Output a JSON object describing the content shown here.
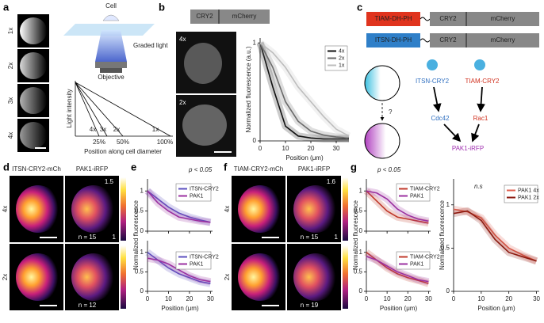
{
  "a": {
    "label": "a",
    "rows": [
      "1x",
      "2x",
      "3x",
      "4x"
    ],
    "cell": "Cell",
    "light": "Graded light",
    "objective": "Objective",
    "ylabel": "Light intensity",
    "xlabel": "Position along cell diameter",
    "line_labels": [
      "4x",
      "3x",
      "2x",
      "1x"
    ],
    "end_labels": [
      "25%",
      "50%",
      "100%"
    ]
  },
  "b": {
    "label": "b",
    "construct": [
      "CRY2",
      "mCherry"
    ],
    "rows": [
      "4x",
      "2x"
    ],
    "plot": {
      "ylabel": "Normalized fluorescence (a.u.)",
      "xlabel": "Position (μm)",
      "xlim": [
        0,
        35
      ],
      "xticks": [
        0,
        10,
        20,
        30
      ],
      "ylim": [
        0,
        1.05
      ],
      "x": [
        0,
        5,
        10,
        15,
        20,
        25,
        30,
        35
      ],
      "plots": [
        {
          "yticks": [
            0,
            1
          ],
          "series": [
            {
              "name": "4x",
              "color": "#111111",
              "values": [
                1,
                0.55,
                0.15,
                0.05,
                0.03,
                0.02,
                0.02,
                0.02
              ]
            },
            {
              "name": "2x",
              "color": "#6a6a6a",
              "values": [
                1,
                0.75,
                0.4,
                0.2,
                0.1,
                0.06,
                0.04,
                0.03
              ]
            },
            {
              "name": "1x",
              "color": "#bdbdbd",
              "values": [
                1,
                0.9,
                0.75,
                0.55,
                0.4,
                0.25,
                0.12,
                0.05
              ]
            }
          ]
        }
      ]
    }
  },
  "c": {
    "label": "c",
    "constructs": [
      {
        "name": "TIAM-DH-PH",
        "parts": [
          "CRY2",
          "mCherry"
        ]
      },
      {
        "name": "ITSN-DH-PH",
        "parts": [
          "CRY2",
          "mCherry"
        ]
      }
    ],
    "question": "?",
    "nodes": [
      "ITSN-CRY2",
      "TIAM-CRY2",
      "Cdc42",
      "Rac1",
      "PAK1-iRFP"
    ]
  },
  "d": {
    "label": "d",
    "columns": [
      "ITSN-CRY2-mCh",
      "PAK1-iRFP"
    ],
    "rows": [
      "4x",
      "2x"
    ],
    "n": [
      "n = 15",
      "n = 12"
    ],
    "colorbar": [
      "1.5",
      "1"
    ]
  },
  "e": {
    "label": "e",
    "annotation": "p < 0.05",
    "ylabel": "Normalized fluorescence",
    "xlabel": "Position (μm)",
    "xlim": [
      0,
      31
    ],
    "xticks": [
      0,
      10,
      20,
      30
    ],
    "ylim": [
      0,
      1.3
    ],
    "x": [
      0,
      5,
      10,
      15,
      20,
      25,
      30
    ],
    "plots": [
      {
        "yticks": [
          0,
          0.5,
          1
        ],
        "series": [
          {
            "name": "ITSN-CRY2",
            "color": "#5b4fbf",
            "values": [
              1,
              0.8,
              0.6,
              0.45,
              0.35,
              0.28,
              0.22
            ]
          },
          {
            "name": "PAK1",
            "color": "#9b30a0",
            "values": [
              1,
              0.7,
              0.5,
              0.35,
              0.3,
              0.25,
              0.22
            ]
          }
        ]
      },
      {
        "yticks": [
          0,
          0.5,
          1
        ],
        "series": [
          {
            "name": "ITSN-CRY2",
            "color": "#5b4fbf",
            "values": [
              1,
              0.8,
              0.6,
              0.45,
              0.35,
              0.25,
              0.2
            ]
          },
          {
            "name": "PAK1",
            "color": "#9b30a0",
            "values": [
              0.85,
              0.8,
              0.7,
              0.55,
              0.4,
              0.3,
              0.25
            ]
          }
        ]
      }
    ]
  },
  "f": {
    "label": "f",
    "columns": [
      "TIAM-CRY2-mCh",
      "PAK1-iRFP"
    ],
    "rows": [
      "4x",
      "2x"
    ],
    "n": [
      "n = 15",
      "n = 19"
    ],
    "colorbar": [
      "1.6",
      "1"
    ]
  },
  "g": {
    "label": "g",
    "left": {
      "annotation": "p < 0.05",
      "ylabel": "Normalized fluorescence",
      "xlabel": "Position (μm)",
      "xlim": [
        0,
        31
      ],
      "xticks": [
        0,
        10,
        20,
        30
      ],
      "ylim": [
        0,
        1.3
      ],
      "x": [
        0,
        5,
        10,
        15,
        20,
        25,
        30
      ],
      "plots": [
        {
          "yticks": [
            0,
            0.5,
            1
          ],
          "series": [
            {
              "name": "TIAM-CRY2",
              "color": "#c0392b",
              "values": [
                1,
                0.75,
                0.5,
                0.35,
                0.3,
                0.25,
                0.2
              ]
            },
            {
              "name": "PAK1",
              "color": "#9b30a0",
              "values": [
                1,
                0.95,
                0.8,
                0.55,
                0.4,
                0.3,
                0.25
              ]
            }
          ]
        },
        {
          "yticks": [
            0,
            0.5,
            1
          ],
          "series": [
            {
              "name": "TIAM-CRY2",
              "color": "#c0392b",
              "values": [
                1,
                0.8,
                0.6,
                0.45,
                0.35,
                0.28,
                0.2
              ]
            },
            {
              "name": "PAK1",
              "color": "#9b30a0",
              "values": [
                0.9,
                0.8,
                0.65,
                0.5,
                0.4,
                0.3,
                0.25
              ]
            }
          ]
        }
      ]
    },
    "right": {
      "annotation": "n.s",
      "ylabel": "Normalized fluorescence",
      "xlabel": "Position (μm)",
      "xlim": [
        0,
        31
      ],
      "xticks": [
        0,
        10,
        20,
        30
      ],
      "ylim": [
        0,
        1.3
      ],
      "x": [
        0,
        5,
        10,
        15,
        20,
        25,
        30
      ],
      "plots": [
        {
          "yticks": [
            0,
            0.5,
            1
          ],
          "series": [
            {
              "name": "PAK1 4x",
              "color": "#e06050",
              "values": [
                0.95,
                0.92,
                0.85,
                0.65,
                0.5,
                0.42,
                0.35
              ]
            },
            {
              "name": "PAK1 2x",
              "color": "#8b1a10",
              "values": [
                0.9,
                0.93,
                0.82,
                0.6,
                0.45,
                0.4,
                0.35
              ]
            }
          ]
        }
      ]
    }
  }
}
